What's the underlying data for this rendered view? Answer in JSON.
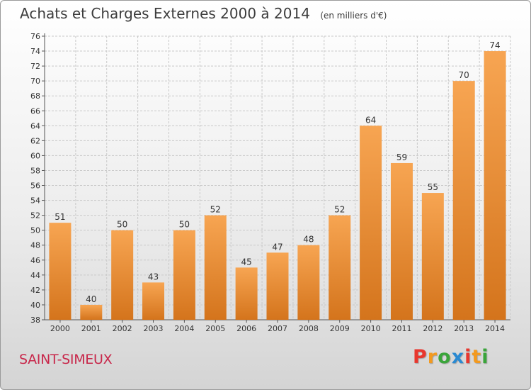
{
  "header": {
    "title": "Achats et Charges Externes 2000 à 2014",
    "subtitle": "(en milliers d'€)"
  },
  "footer": {
    "commune": "SAINT-SIMEUX",
    "brand": "Proxiti",
    "brand_colors": [
      "#e8372e",
      "#f39a1f",
      "#3aa53a",
      "#2a8ad2",
      "#e8372e",
      "#f39a1f",
      "#3aa53a"
    ]
  },
  "chart_data": {
    "type": "bar",
    "title": "Achats et Charges Externes 2000 à 2014",
    "subtitle": "(en milliers d'€)",
    "categories": [
      "2000",
      "2001",
      "2002",
      "2003",
      "2004",
      "2005",
      "2006",
      "2007",
      "2008",
      "2009",
      "2010",
      "2011",
      "2012",
      "2013",
      "2014"
    ],
    "values": [
      51,
      40,
      50,
      43,
      50,
      52,
      45,
      47,
      48,
      52,
      64,
      59,
      55,
      70,
      74
    ],
    "ylim": [
      38,
      76
    ],
    "yticks": [
      38,
      40,
      42,
      44,
      46,
      48,
      50,
      52,
      54,
      56,
      58,
      60,
      62,
      64,
      66,
      68,
      70,
      72,
      74,
      76
    ],
    "grid": true,
    "bar_color_top": "#f7a552",
    "bar_color_bottom": "#d4741c",
    "data_labels": true
  }
}
